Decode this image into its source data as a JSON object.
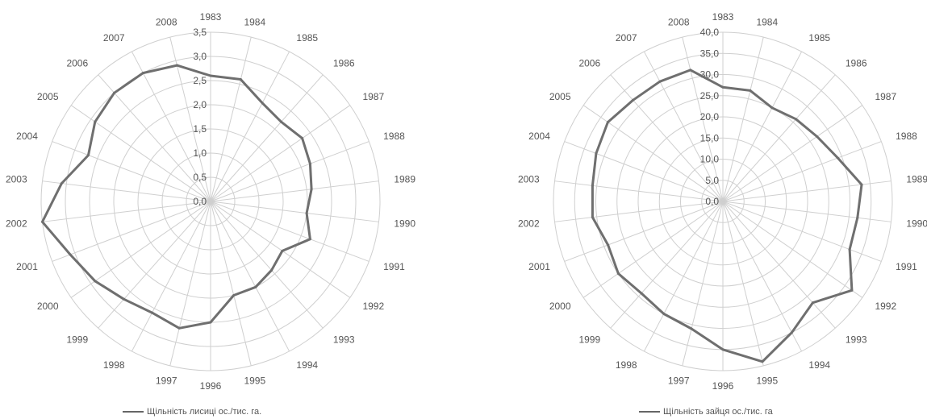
{
  "chart_data": [
    {
      "type": "radar",
      "categories": [
        "1983",
        "1984",
        "1985",
        "1986",
        "1987",
        "1988",
        "1989",
        "1990",
        "1991",
        "1992",
        "1993",
        "1994",
        "1995",
        "1996",
        "1997",
        "1998",
        "1999",
        "2000",
        "2001",
        "2002",
        "2003",
        "2004",
        "2005",
        "2006",
        "2007",
        "2008"
      ],
      "series": [
        {
          "name": "Щільність лисиці ос./тис. га.",
          "values": [
            2.6,
            2.6,
            2.3,
            2.2,
            2.3,
            2.2,
            2.1,
            2.0,
            2.2,
            1.8,
            1.9,
            2.0,
            2.0,
            2.5,
            2.7,
            2.6,
            2.7,
            2.9,
            3.1,
            3.5,
            3.1,
            2.7,
            2.9,
            3.0,
            3.0,
            2.9
          ],
          "color": "#6f6f6f"
        }
      ],
      "rlim": [
        0,
        3.5
      ],
      "rticks": [
        "0,0",
        "0,5",
        "1,0",
        "1,5",
        "2,0",
        "2,5",
        "3,0",
        "3,5"
      ],
      "grid": true,
      "legend_position": "bottom"
    },
    {
      "type": "radar",
      "categories": [
        "1983",
        "1984",
        "1985",
        "1986",
        "1987",
        "1988",
        "1989",
        "1990",
        "1991",
        "1992",
        "1993",
        "1994",
        "1995",
        "1996",
        "1997",
        "1998",
        "1999",
        "2000",
        "2001",
        "2002",
        "2003",
        "2004",
        "2005",
        "2006",
        "2007",
        "2008"
      ],
      "series": [
        {
          "name": "Щільність зайця ос./тис. га",
          "values": [
            27.0,
            27.0,
            25.0,
            26.0,
            27.0,
            29.0,
            33.0,
            32.0,
            32.0,
            37.0,
            32.0,
            35.0,
            39.0,
            35.0,
            31.0,
            30.0,
            29.0,
            30.0,
            29.0,
            31.0,
            31.0,
            32.0,
            33.0,
            32.0,
            32.0,
            32.0
          ],
          "color": "#6f6f6f"
        }
      ],
      "rlim": [
        0,
        40
      ],
      "rticks": [
        "0,0",
        "5,0",
        "10,0",
        "15,0",
        "20,0",
        "25,0",
        "30,0",
        "35,0",
        "40,0"
      ],
      "grid": true,
      "legend_position": "bottom"
    }
  ]
}
